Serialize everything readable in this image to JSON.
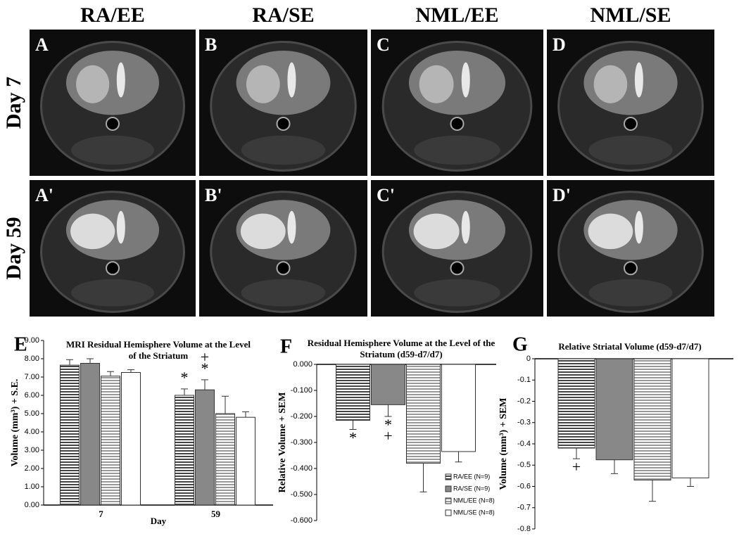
{
  "figure": {
    "columns": [
      "RA/EE",
      "RA/SE",
      "NML/EE",
      "NML/SE"
    ],
    "rows": [
      "Day 7",
      "Day 59"
    ],
    "panels": [
      "A",
      "B",
      "C",
      "D",
      "A'",
      "B'",
      "C'",
      "D'"
    ]
  },
  "chart_data": [
    {
      "type": "bar",
      "panel": "E",
      "title": "MRI Residual Hemisphere Volume at the Level of the Striatum",
      "y_label": "Volume (mm³) + S.E.",
      "x_label": "Day",
      "categories": [
        "7",
        "59"
      ],
      "series": [
        {
          "color": "#444444",
          "hatch": true,
          "values": [
            7.65,
            6.0
          ],
          "errors": [
            0.3,
            0.35
          ]
        },
        {
          "color": "#888888",
          "hatch": false,
          "values": [
            7.75,
            6.3
          ],
          "errors": [
            0.25,
            0.55
          ]
        },
        {
          "color": "#999999",
          "hatch": true,
          "values": [
            7.05,
            5.0
          ],
          "errors": [
            0.25,
            0.95
          ]
        },
        {
          "color": "#ffffff",
          "hatch": false,
          "values": [
            7.25,
            4.8
          ],
          "errors": [
            0.15,
            0.3
          ]
        }
      ],
      "annotations": [
        "*",
        "*",
        "+"
      ],
      "ylim": [
        0,
        9
      ],
      "yticks": [
        {
          "value": 0,
          "label": "0.00"
        },
        {
          "value": 1,
          "label": "1.00"
        },
        {
          "value": 2,
          "label": "2.00"
        },
        {
          "value": 3,
          "label": "3.00"
        },
        {
          "value": 4,
          "label": "4.00"
        },
        {
          "value": 5,
          "label": "5.00"
        },
        {
          "value": 6,
          "label": "6.00"
        },
        {
          "value": 7,
          "label": "7.00"
        },
        {
          "value": 8,
          "label": "8.00"
        },
        {
          "value": 9,
          "label": "9.00"
        }
      ]
    },
    {
      "type": "bar",
      "panel": "F",
      "title": "Residual Hemisphere Volume at the Level of the Striatum (d59-d7/d7)",
      "y_label": "Relative Volume + SEM",
      "series": [
        {
          "name": "RA/EE (N=9)",
          "color": "#444444",
          "hatch": true,
          "values": [
            -0.215
          ],
          "errors": [
            0.035
          ]
        },
        {
          "name": "RA/SE (N=9)",
          "color": "#888888",
          "hatch": false,
          "values": [
            -0.155
          ],
          "errors": [
            0.045
          ]
        },
        {
          "name": "NML/EE (N=8)",
          "color": "#999999",
          "hatch": true,
          "values": [
            -0.38
          ],
          "errors": [
            0.11
          ]
        },
        {
          "name": "NML/SE (N=8)",
          "color": "#ffffff",
          "hatch": false,
          "values": [
            -0.335
          ],
          "errors": [
            0.04
          ]
        }
      ],
      "annotations": [
        "*",
        "*",
        "+"
      ],
      "legend": "bottom-right",
      "ylim": [
        -0.6,
        0
      ],
      "yticks": [
        {
          "value": 0,
          "label": "0.000"
        },
        {
          "value": -0.1,
          "label": "-0.100"
        },
        {
          "value": -0.2,
          "label": "-0.200"
        },
        {
          "value": -0.3,
          "label": "-0.300"
        },
        {
          "value": -0.4,
          "label": "-0.400"
        },
        {
          "value": -0.5,
          "label": "-0.500"
        },
        {
          "value": -0.6,
          "label": "-0.600"
        }
      ]
    },
    {
      "type": "bar",
      "panel": "G",
      "title": "Relative Striatal Volume (d59-d7/d7)",
      "y_label": "Volume (mm³) + SEM",
      "series": [
        {
          "color": "#444444",
          "hatch": true,
          "values": [
            -0.42
          ],
          "errors": [
            0.05
          ]
        },
        {
          "color": "#888888",
          "hatch": false,
          "values": [
            -0.475
          ],
          "errors": [
            0.065
          ]
        },
        {
          "color": "#999999",
          "hatch": true,
          "values": [
            -0.57
          ],
          "errors": [
            0.1
          ]
        },
        {
          "color": "#ffffff",
          "hatch": false,
          "values": [
            -0.56
          ],
          "errors": [
            0.04
          ]
        }
      ],
      "annotations": [
        "+"
      ],
      "ylim": [
        -0.8,
        0
      ],
      "yticks": [
        0,
        -0.1,
        -0.2,
        -0.3,
        -0.4,
        -0.5,
        -0.6,
        -0.7,
        -0.8
      ]
    }
  ]
}
